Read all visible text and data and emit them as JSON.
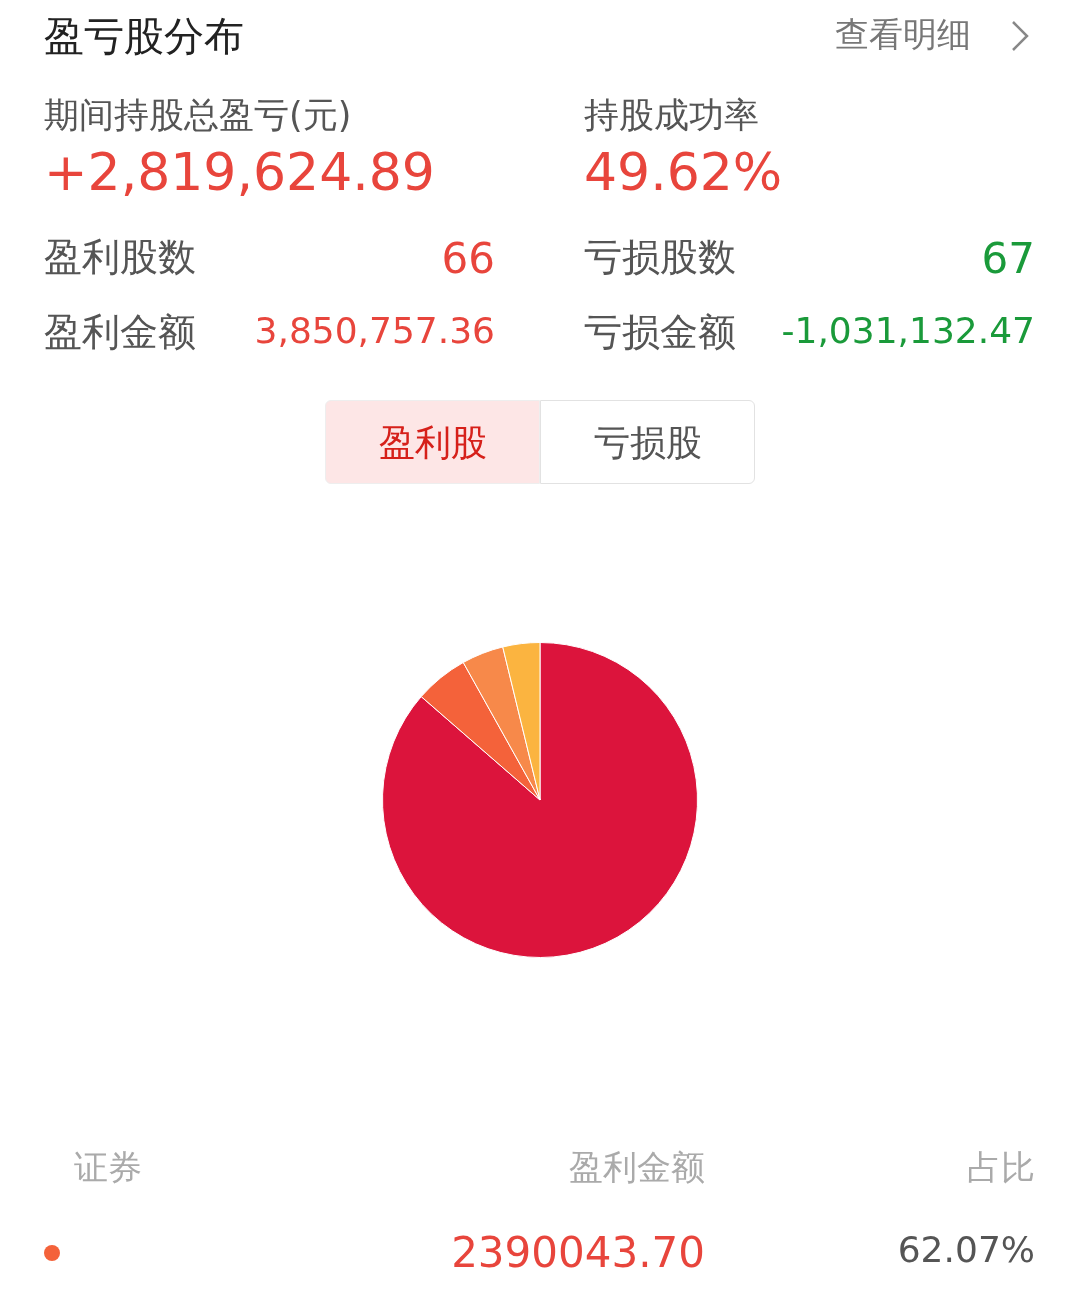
{
  "chart_data": {
    "type": "pie",
    "title": "盈亏股分布",
    "categories": [
      null,
      null,
      null,
      null
    ],
    "values": [
      86.4,
      5.5,
      4.3,
      3.8
    ],
    "colors": [
      "#dc143c",
      "#f4623a",
      "#f7894a",
      "#fbb440"
    ],
    "legend": false,
    "annotations": [
      "查看明细",
      "期间持股总盈亏(元)",
      "+2,819,624.89",
      "持股成功率",
      "49.62%",
      "盈利股数",
      "66",
      "亏损股数",
      "67",
      "盈利金额",
      "3,850,757.36",
      "亏损金额",
      "-1,031,132.47",
      "盈利股",
      "亏损股",
      "证券",
      "盈利金额",
      "占比",
      "2390043.70",
      "62.07%"
    ]
  }
}
